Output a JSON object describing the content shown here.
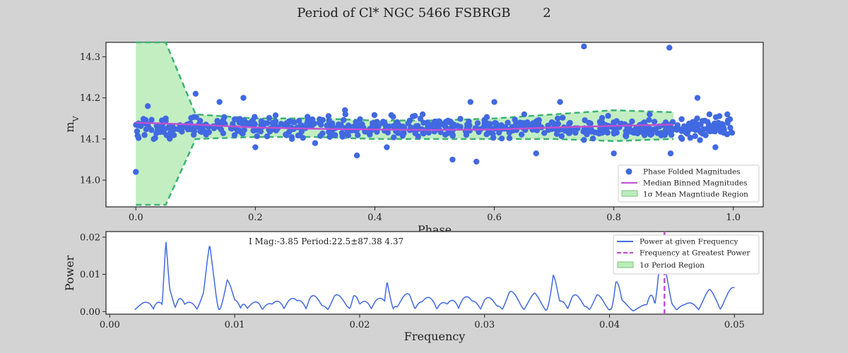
{
  "title": "Period of Cl* NGC 5466 FSBRGB        2",
  "chart_data": [
    {
      "type": "scatter",
      "panel": "phase-fold",
      "xlabel": "Phase",
      "ylabel": "m_V",
      "xlim": [
        -0.05,
        1.05
      ],
      "ylim": [
        13.935,
        14.335
      ],
      "xticks": [
        "0.0",
        "0.2",
        "0.4",
        "0.6",
        "0.8",
        "1.0"
      ],
      "xtick_values": [
        0.0,
        0.2,
        0.4,
        0.6,
        0.8,
        1.0
      ],
      "yticks": [
        "14.0",
        "14.1",
        "14.2",
        "14.3"
      ],
      "ytick_values": [
        14.0,
        14.1,
        14.2,
        14.3
      ],
      "grid": false,
      "legend_position": "lower-right",
      "series": [
        {
          "name": "Phase Folded Magnitudes",
          "kind": "scatter",
          "color": "#4169e1",
          "points": [
            [
              0.0,
              14.02
            ],
            [
              0.02,
              14.18
            ],
            [
              0.1,
              14.21
            ],
            [
              0.14,
              14.19
            ],
            [
              0.18,
              14.2
            ],
            [
              0.35,
              14.17
            ],
            [
              0.56,
              14.19
            ],
            [
              0.6,
              14.19
            ],
            [
              0.71,
              14.19
            ],
            [
              0.75,
              14.325
            ],
            [
              0.893,
              14.322
            ],
            [
              0.94,
              14.2
            ],
            [
              0.37,
              14.06
            ],
            [
              0.53,
              14.05
            ],
            [
              0.57,
              14.045
            ],
            [
              0.67,
              14.065
            ],
            [
              0.8,
              14.065
            ],
            [
              0.895,
              14.065
            ],
            [
              0.97,
              14.08
            ],
            [
              0.03,
              14.1
            ],
            [
              0.05,
              14.15
            ],
            [
              0.2,
              14.08
            ],
            [
              0.3,
              14.09
            ],
            [
              0.42,
              14.08
            ],
            [
              0.48,
              14.16
            ],
            [
              0.65,
              14.16
            ],
            [
              0.86,
              14.16
            ],
            [
              0.96,
              14.16
            ],
            [
              0.99,
              14.16
            ]
          ],
          "note_points": "plus ~700 additional phase-folded points clustered at m_V 14.08-14.18 across phase 0.0-1.0"
        },
        {
          "name": "Median Binned Magnitudes",
          "kind": "line",
          "color": "#c050d0",
          "x": [
            0.0,
            0.1,
            0.2,
            0.3,
            0.4,
            0.5,
            0.6,
            0.7,
            0.8,
            0.9
          ],
          "y": [
            14.14,
            14.135,
            14.128,
            14.125,
            14.123,
            14.122,
            14.123,
            14.128,
            14.132,
            14.135
          ]
        },
        {
          "name": "1σ Mean Magntiude Region",
          "kind": "band",
          "color": "#90e090",
          "x": [
            0.0,
            0.05,
            0.1,
            0.2,
            0.3,
            0.4,
            0.5,
            0.6,
            0.7,
            0.8,
            0.9
          ],
          "upper": [
            14.34,
            14.34,
            14.16,
            14.15,
            14.15,
            14.145,
            14.145,
            14.15,
            14.16,
            14.17,
            14.165
          ],
          "lower": [
            13.94,
            13.94,
            14.1,
            14.105,
            14.105,
            14.1,
            14.1,
            14.1,
            14.1,
            14.095,
            14.1
          ]
        }
      ]
    },
    {
      "type": "line",
      "panel": "periodogram",
      "xlabel": "Frequency",
      "ylabel": "Power",
      "xlim": [
        -0.0003,
        0.0523
      ],
      "ylim": [
        -0.0007,
        0.0215
      ],
      "xticks": [
        "0.00",
        "0.01",
        "0.02",
        "0.03",
        "0.04",
        "0.05"
      ],
      "xtick_values": [
        0.0,
        0.01,
        0.02,
        0.03,
        0.04,
        0.05
      ],
      "yticks": [
        "0.00",
        "0.01",
        "0.02"
      ],
      "ytick_values": [
        0.0,
        0.01,
        0.02
      ],
      "annotation": "I Mag:-3.85 Period:22.5±87.38 4.37",
      "legend_position": "upper-right",
      "best_frequency": 0.0444,
      "series": [
        {
          "name": "Power at given Frequency",
          "color": "#4169e1",
          "x": [
            0.002,
            0.003,
            0.0036,
            0.0042,
            0.0045,
            0.0048,
            0.0055,
            0.006,
            0.007,
            0.0075,
            0.008,
            0.0084,
            0.0088,
            0.0094,
            0.01,
            0.0105,
            0.011,
            0.012,
            0.013,
            0.014,
            0.015,
            0.016,
            0.017,
            0.018,
            0.019,
            0.0195,
            0.02,
            0.021,
            0.022,
            0.0222,
            0.023,
            0.024,
            0.025,
            0.026,
            0.027,
            0.028,
            0.029,
            0.03,
            0.031,
            0.032,
            0.033,
            0.034,
            0.035,
            0.0355,
            0.036,
            0.037,
            0.038,
            0.039,
            0.04,
            0.0405,
            0.041,
            0.042,
            0.043,
            0.044,
            0.045,
            0.046,
            0.047,
            0.048,
            0.049,
            0.05
          ],
          "y": [
            0.001,
            0.003,
            0.005,
            0.002,
            0.0195,
            0.008,
            0.006,
            0.002,
            0.004,
            0.006,
            0.0185,
            0.012,
            0.002,
            0.009,
            0.004,
            0.006,
            0.001,
            0.004,
            0.002,
            0.005,
            0.003,
            0.006,
            0.002,
            0.005,
            0.003,
            0.007,
            0.002,
            0.005,
            0.003,
            0.01,
            0.002,
            0.006,
            0.003,
            0.005,
            0.002,
            0.006,
            0.003,
            0.005,
            0.002,
            0.006,
            0.003,
            0.005,
            0.002,
            0.011,
            0.003,
            0.006,
            0.002,
            0.005,
            0.001,
            0.012,
            0.003,
            0.001,
            0.002,
            0.0185,
            0.003,
            0.002,
            0.003,
            0.006,
            0.004,
            0.007
          ]
        },
        {
          "name": "Frequency at Greatest Power",
          "color": "#c050d0",
          "kind": "vline"
        },
        {
          "name": "1σ Period Region",
          "color": "#90e090",
          "kind": "band"
        }
      ]
    }
  ]
}
